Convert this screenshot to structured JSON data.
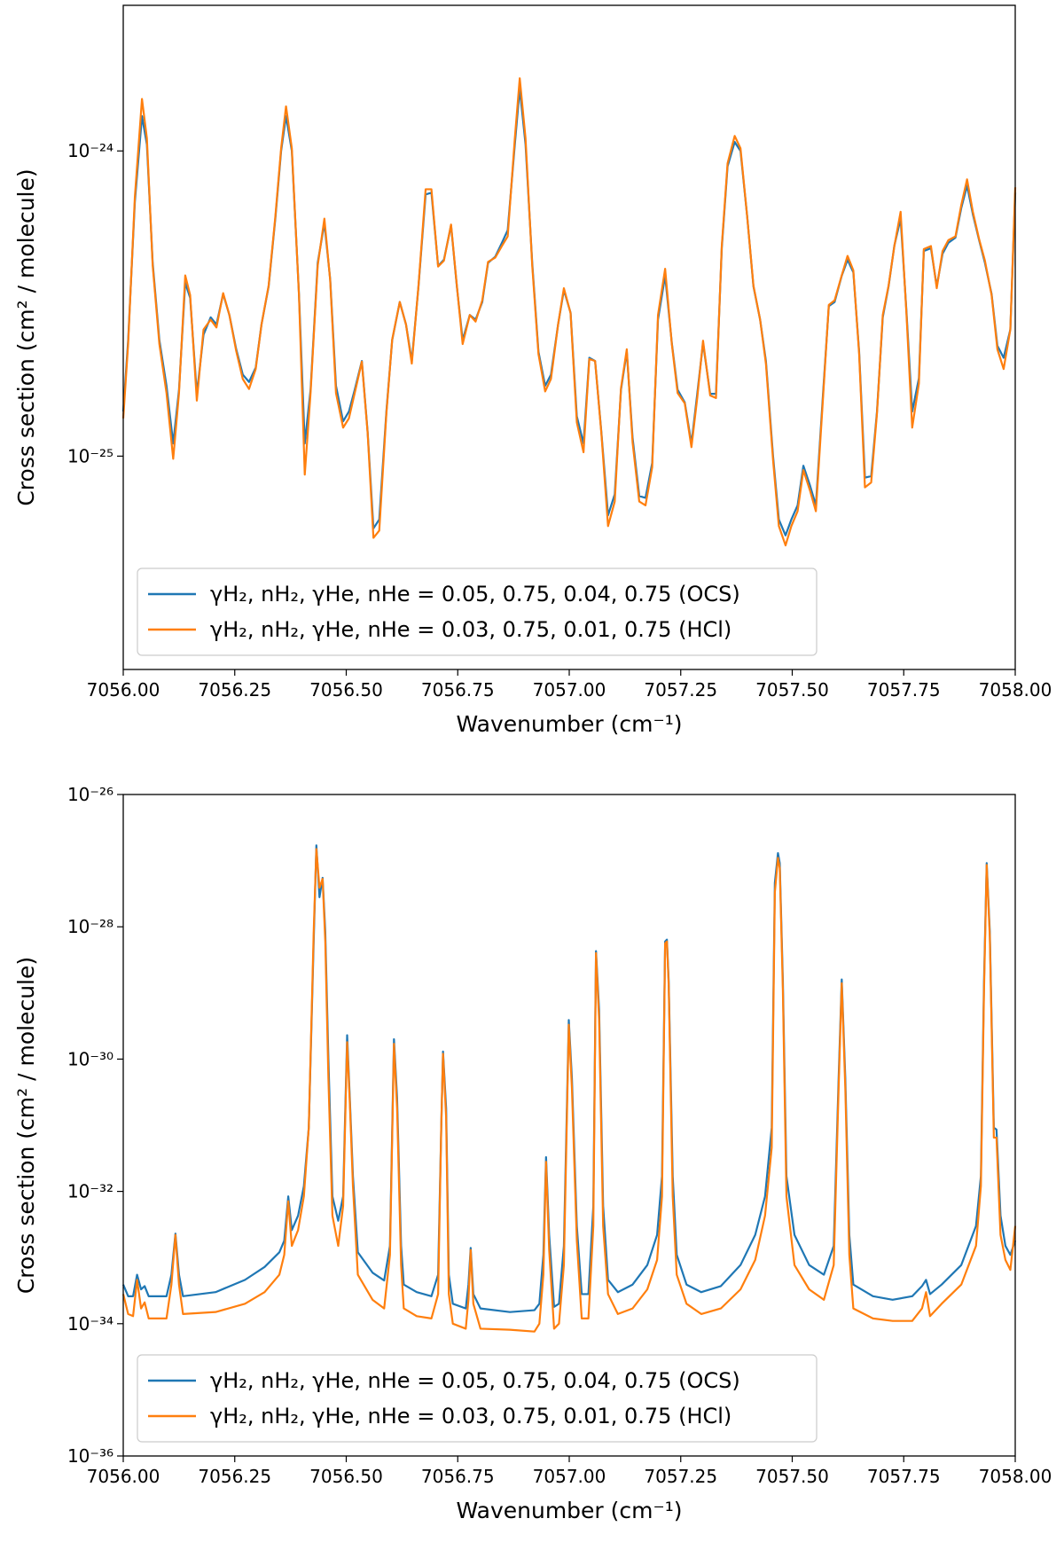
{
  "chart_data": [
    {
      "type": "line",
      "xlabel": "Wavenumber (cm⁻¹)",
      "ylabel": "Cross section (cm² / molecule)",
      "yscale": "log",
      "legend": "lower left",
      "xlim": [
        7056,
        7058
      ],
      "ylim": [
        2e-26,
        3e-24
      ],
      "xticks": [
        {
          "value": 7056,
          "label": "7056.00"
        },
        {
          "value": 7056.25,
          "label": "7056.25"
        },
        {
          "value": 7056.5,
          "label": "7056.50"
        },
        {
          "value": 7056.75,
          "label": "7056.75"
        },
        {
          "value": 7057,
          "label": "7057.00"
        },
        {
          "value": 7057.25,
          "label": "7057.25"
        },
        {
          "value": 7057.5,
          "label": "7057.50"
        },
        {
          "value": 7057.75,
          "label": "7057.75"
        },
        {
          "value": 7058,
          "label": "7058.00"
        }
      ],
      "yticks": [
        {
          "value": 1e-25,
          "label": "10⁻²⁵"
        },
        {
          "value": 1e-24,
          "label": "10⁻²⁴"
        }
      ],
      "x": [
        7056.0,
        7056.011,
        7056.026,
        7056.042,
        7056.053,
        7056.066,
        7056.081,
        7056.097,
        7056.112,
        7056.125,
        7056.139,
        7056.15,
        7056.165,
        7056.18,
        7056.196,
        7056.209,
        7056.224,
        7056.238,
        7056.253,
        7056.268,
        7056.282,
        7056.297,
        7056.31,
        7056.326,
        7056.341,
        7056.354,
        7056.365,
        7056.378,
        7056.394,
        7056.407,
        7056.42,
        7056.436,
        7056.451,
        7056.464,
        7056.477,
        7056.493,
        7056.506,
        7056.519,
        7056.535,
        7056.548,
        7056.561,
        7056.574,
        7056.59,
        7056.603,
        7056.62,
        7056.634,
        7056.647,
        7056.662,
        7056.678,
        7056.691,
        7056.706,
        7056.719,
        7056.735,
        7056.748,
        7056.761,
        7056.777,
        7056.79,
        7056.805,
        7056.818,
        7056.834,
        7056.849,
        7056.862,
        7056.878,
        7056.889,
        7056.902,
        7056.917,
        7056.931,
        7056.946,
        7056.959,
        7056.975,
        7056.988,
        7057.003,
        7057.017,
        7057.032,
        7057.045,
        7057.058,
        7057.072,
        7057.087,
        7057.102,
        7057.116,
        7057.129,
        7057.142,
        7057.157,
        7057.171,
        7057.186,
        7057.199,
        7057.215,
        7057.23,
        7057.243,
        7057.259,
        7057.274,
        7057.287,
        7057.3,
        7057.316,
        7057.329,
        7057.342,
        7057.355,
        7057.371,
        7057.384,
        7057.399,
        7057.413,
        7057.428,
        7057.441,
        7057.457,
        7057.47,
        7057.485,
        7057.498,
        7057.512,
        7057.525,
        7057.54,
        7057.553,
        7057.569,
        7057.582,
        7057.595,
        7057.611,
        7057.624,
        7057.637,
        7057.65,
        7057.663,
        7057.677,
        7057.69,
        7057.703,
        7057.716,
        7057.729,
        7057.743,
        7057.756,
        7057.769,
        7057.784,
        7057.795,
        7057.811,
        7057.824,
        7057.837,
        7057.85,
        7057.866,
        7057.879,
        7057.892,
        7057.905,
        7057.919,
        7057.932,
        7057.947,
        7057.96,
        7057.974,
        7057.989,
        7058.0
      ],
      "series": [
        {
          "name": "γH₂, nH₂, γHe, nHe = 0.05, 0.75, 0.04, 0.75 (OCS)",
          "color": "#1f77b4",
          "values": [
            1.4e-25,
            2.4e-25,
            6.8e-25,
            1.3e-24,
            1.05e-24,
            4.3e-25,
            2.4e-25,
            1.7e-25,
            1.1e-25,
            1.65e-25,
            3.7e-25,
            3.3e-25,
            1.6e-25,
            2.5e-25,
            2.85e-25,
            2.7e-25,
            3.4e-25,
            2.9e-25,
            2.25e-25,
            1.85e-25,
            1.75e-25,
            1.95e-25,
            2.7e-25,
            3.6e-25,
            6e-25,
            1e-24,
            1.3e-24,
            1e-24,
            3.4e-25,
            1.1e-25,
            1.65e-25,
            4.3e-25,
            5.8e-25,
            3.8e-25,
            1.7e-25,
            1.3e-25,
            1.4e-25,
            1.65e-25,
            2.05e-25,
            1.2e-25,
            5.8e-26,
            6.2e-26,
            1.4e-25,
            2.4e-25,
            3.2e-25,
            2.7e-25,
            2.05e-25,
            3.6e-25,
            7.2e-25,
            7.3e-25,
            4.2e-25,
            4.4e-25,
            5.7e-25,
            3.6e-25,
            2.4e-25,
            2.9e-25,
            2.8e-25,
            3.2e-25,
            4.3e-25,
            4.5e-25,
            5e-25,
            5.5e-25,
            1.05e-24,
            1.6e-24,
            1.05e-24,
            4.3e-25,
            2.2e-25,
            1.7e-25,
            1.85e-25,
            2.7e-25,
            3.5e-25,
            2.95e-25,
            1.35e-25,
            1.1e-25,
            2.1e-25,
            2.05e-25,
            1.2e-25,
            6.4e-26,
            7.5e-26,
            1.65e-25,
            2.2e-25,
            1.15e-25,
            7.4e-26,
            7.3e-26,
            9.5e-26,
            2.8e-25,
            3.9e-25,
            2.35e-25,
            1.65e-25,
            1.5e-25,
            1.1e-25,
            1.6e-25,
            2.35e-25,
            1.6e-25,
            1.6e-25,
            4.8e-25,
            8.9e-25,
            1.07e-24,
            1e-24,
            6.1e-25,
            3.6e-25,
            2.8e-25,
            2.05e-25,
            1e-25,
            6.2e-26,
            5.5e-26,
            6.2e-26,
            6.9e-26,
            9.3e-26,
            8e-26,
            6.9e-26,
            1.6e-25,
            3.1e-25,
            3.2e-25,
            3.9e-25,
            4.4e-25,
            4e-25,
            2.2e-25,
            8.5e-26,
            8.6e-26,
            1.4e-25,
            2.85e-25,
            3.6e-25,
            4.9e-25,
            6e-25,
            3e-25,
            1.4e-25,
            1.8e-25,
            4.7e-25,
            4.8e-25,
            3.6e-25,
            4.6e-25,
            5e-25,
            5.2e-25,
            6.5e-25,
            7.7e-25,
            6.2e-25,
            5.1e-25,
            4.3e-25,
            3.4e-25,
            2.3e-25,
            2.1e-25,
            2.6e-25,
            7.3e-25
          ]
        },
        {
          "name": "γH₂, nH₂, γHe, nHe = 0.03, 0.75, 0.01, 0.75 (HCl)",
          "color": "#ff7f0e",
          "values": [
            1.33e-25,
            2.33e-25,
            7.06e-25,
            1.48e-24,
            1.1e-24,
            4.21e-25,
            2.33e-25,
            1.61e-25,
            9.8e-26,
            1.61e-25,
            3.91e-25,
            3.37e-25,
            1.52e-25,
            2.6e-25,
            2.8e-25,
            2.64e-25,
            3.42e-25,
            2.9e-25,
            2.22e-25,
            1.79e-25,
            1.66e-25,
            1.93e-25,
            2.7e-25,
            3.62e-25,
            6.09e-25,
            1.02e-24,
            1.4e-24,
            1.02e-24,
            3.37e-25,
            8.7e-26,
            1.61e-25,
            4.21e-25,
            6e-25,
            3.77e-25,
            1.61e-25,
            1.24e-25,
            1.33e-25,
            1.61e-25,
            2.04e-25,
            1.19e-25,
            5.4e-26,
            5.7e-26,
            1.38e-25,
            2.41e-25,
            3.2e-25,
            2.7e-25,
            2.01e-25,
            3.62e-25,
            7.49e-25,
            7.49e-25,
            4.18e-25,
            4.37e-25,
            5.74e-25,
            3.62e-25,
            2.33e-25,
            2.9e-25,
            2.76e-25,
            3.24e-25,
            4.33e-25,
            4.47e-25,
            4.88e-25,
            5.25e-25,
            1.1e-24,
            1.73e-24,
            1.1e-24,
            4.21e-25,
            2.16e-25,
            1.63e-25,
            1.79e-25,
            2.7e-25,
            3.55e-25,
            2.94e-25,
            1.29e-25,
            1.03e-25,
            2.08e-25,
            2.05e-25,
            1.19e-25,
            5.9e-26,
            7.1e-26,
            1.67e-25,
            2.24e-25,
            1.11e-25,
            7.1e-26,
            6.9e-26,
            9.2e-26,
            2.9e-25,
            4.11e-25,
            2.33e-25,
            1.61e-25,
            1.49e-25,
            1.07e-25,
            1.55e-25,
            2.39e-25,
            1.58e-25,
            1.55e-25,
            4.88e-25,
            9.1e-25,
            1.12e-24,
            1.02e-24,
            6.09e-25,
            3.62e-25,
            2.8e-25,
            2.01e-25,
            9.7e-26,
            5.9e-26,
            5.1e-26,
            5.9e-26,
            6.6e-26,
            9e-26,
            7.7e-26,
            6.6e-26,
            1.55e-25,
            3.13e-25,
            3.24e-25,
            3.91e-25,
            4.53e-25,
            4.06e-25,
            2.16e-25,
            7.9e-26,
            8.2e-26,
            1.38e-25,
            2.9e-25,
            3.62e-25,
            4.88e-25,
            6.32e-25,
            2.94e-25,
            1.24e-25,
            1.73e-25,
            4.77e-25,
            4.88e-25,
            3.55e-25,
            4.7e-25,
            5.1e-25,
            5.25e-25,
            6.65e-25,
            8.07e-25,
            6.32e-25,
            5.14e-25,
            4.37e-25,
            3.37e-25,
            2.24e-25,
            1.93e-25,
            2.6e-25,
            7.6e-25
          ]
        }
      ]
    },
    {
      "type": "line",
      "xlabel": "Wavenumber (cm⁻¹)",
      "ylabel": "Cross section (cm² / molecule)",
      "yscale": "log",
      "legend": "lower left",
      "xlim": [
        7056,
        7058
      ],
      "ylim": [
        1e-36,
        1e-26
      ],
      "xticks": [
        {
          "value": 7056,
          "label": "7056.00"
        },
        {
          "value": 7056.25,
          "label": "7056.25"
        },
        {
          "value": 7056.5,
          "label": "7056.50"
        },
        {
          "value": 7056.75,
          "label": "7056.75"
        },
        {
          "value": 7057,
          "label": "7057.00"
        },
        {
          "value": 7057.25,
          "label": "7057.25"
        },
        {
          "value": 7057.5,
          "label": "7057.50"
        },
        {
          "value": 7057.75,
          "label": "7057.75"
        },
        {
          "value": 7058,
          "label": "7058.00"
        }
      ],
      "yticks": [
        {
          "value": 1e-36,
          "label": "10⁻³⁶"
        },
        {
          "value": 1e-34,
          "label": "10⁻³⁴"
        },
        {
          "value": 1e-32,
          "label": "10⁻³²"
        },
        {
          "value": 1e-30,
          "label": "10⁻³⁰"
        },
        {
          "value": 1e-28,
          "label": "10⁻²⁸"
        },
        {
          "value": 1e-26,
          "label": "10⁻²⁶"
        }
      ],
      "x": [
        7056.0,
        7056.011,
        7056.022,
        7056.031,
        7056.04,
        7056.048,
        7056.057,
        7056.097,
        7056.108,
        7056.117,
        7056.125,
        7056.134,
        7056.207,
        7056.273,
        7056.317,
        7056.35,
        7056.361,
        7056.37,
        7056.378,
        7056.392,
        7056.405,
        7056.416,
        7056.427,
        7056.433,
        7056.44,
        7056.447,
        7056.453,
        7056.46,
        7056.469,
        7056.482,
        7056.493,
        7056.502,
        7056.508,
        7056.515,
        7056.526,
        7056.559,
        7056.585,
        7056.598,
        7056.607,
        7056.614,
        7056.623,
        7056.629,
        7056.658,
        7056.691,
        7056.706,
        7056.713,
        7056.717,
        7056.724,
        7056.73,
        7056.739,
        7056.768,
        7056.774,
        7056.779,
        7056.785,
        7056.801,
        7056.867,
        7056.922,
        7056.933,
        7056.942,
        7056.948,
        7056.955,
        7056.966,
        7056.977,
        7056.988,
        7056.999,
        7057.006,
        7057.017,
        7057.028,
        7057.043,
        7057.054,
        7057.06,
        7057.067,
        7057.076,
        7057.087,
        7057.109,
        7057.142,
        7057.175,
        7057.197,
        7057.208,
        7057.215,
        7057.219,
        7057.223,
        7057.232,
        7057.241,
        7057.263,
        7057.296,
        7057.34,
        7057.384,
        7057.417,
        7057.439,
        7057.454,
        7057.461,
        7057.468,
        7057.472,
        7057.479,
        7057.487,
        7057.505,
        7057.538,
        7057.571,
        7057.593,
        7057.604,
        7057.611,
        7057.619,
        7057.628,
        7057.637,
        7057.681,
        7057.725,
        7057.769,
        7057.791,
        7057.8,
        7057.809,
        7057.835,
        7057.879,
        7057.912,
        7057.923,
        7057.93,
        7057.936,
        7057.943,
        7057.952,
        7057.958,
        7057.967,
        7057.978,
        7057.989,
        7058.0
      ],
      "series": [
        {
          "name": "γH₂, nH₂, γHe, nHe = 0.05, 0.75, 0.04, 0.75 (OCS)",
          "color": "#1f77b4",
          "values": [
            3.9e-34,
            2.6e-34,
            2.6e-34,
            5.5e-34,
            3.3e-34,
            3.7e-34,
            2.6e-34,
            2.6e-34,
            5.5e-34,
            2.3e-33,
            5.5e-34,
            2.6e-34,
            3e-34,
            4.6e-34,
            7.2e-34,
            1.2e-33,
            1.8e-33,
            8.4e-33,
            2.6e-33,
            4.3e-33,
            1.2e-32,
            9.2e-32,
            6e-29,
            1.7e-27,
            2.8e-28,
            5.5e-28,
            8.4e-29,
            1e-30,
            8.4e-33,
            3.6e-33,
            8.4e-33,
            2.3e-30,
            2.6e-31,
            1.7e-32,
            1.2e-33,
            5.9e-34,
            4.5e-34,
            1.5e-33,
            2e-30,
            2.6e-31,
            1.5e-33,
            3.9e-34,
            3e-34,
            2.6e-34,
            5.5e-34,
            9.2e-32,
            1.3e-30,
            1.8e-31,
            5.5e-34,
            2e-34,
            1.7e-34,
            3.9e-34,
            1.4e-33,
            2.8e-34,
            1.7e-34,
            1.5e-34,
            1.6e-34,
            2e-34,
            1.1e-33,
            3.3e-32,
            2.2e-33,
            1.8e-34,
            2e-34,
            1.5e-33,
            3.9e-30,
            5.1e-31,
            3e-33,
            2.8e-34,
            2.8e-34,
            6e-33,
            4.3e-29,
            5.5e-30,
            6e-33,
            4.6e-34,
            3e-34,
            3.9e-34,
            7.7e-34,
            2.2e-33,
            1.7e-32,
            6e-29,
            6.4e-29,
            1.5e-29,
            1.7e-32,
            1.1e-33,
            3.9e-34,
            3e-34,
            3.7e-34,
            7.7e-34,
            2.2e-33,
            8.4e-33,
            9.2e-32,
            4.6e-28,
            1.3e-27,
            9.2e-28,
            1.5e-29,
            1.7e-32,
            2.2e-33,
            7.7e-34,
            5.5e-34,
            1.5e-33,
            5.1e-31,
            1.6e-29,
            5.1e-31,
            2.2e-33,
            3.9e-34,
            2.6e-34,
            2.3e-34,
            2.6e-34,
            3.7e-34,
            4.6e-34,
            2.8e-34,
            3.9e-34,
            7.7e-34,
            3e-33,
            1.7e-32,
            1.5e-29,
            9.2e-28,
            8.4e-29,
            9.2e-32,
            8.6e-32,
            4.3e-33,
            1.5e-33,
            1.1e-33,
            1.8e-33
          ]
        },
        {
          "name": "γH₂, nH₂, γHe, nHe = 0.03, 0.75, 0.01, 0.75 (HCl)",
          "color": "#ff7f0e",
          "values": [
            2.8e-34,
            1.4e-34,
            1.3e-34,
            4.6e-34,
            1.7e-34,
            2.1e-34,
            1.2e-34,
            1.2e-34,
            3.9e-34,
            2.2e-33,
            3.9e-34,
            1.4e-34,
            1.5e-34,
            2e-34,
            3e-34,
            5.5e-34,
            1.1e-33,
            7.1e-33,
            1.5e-33,
            2.6e-33,
            8.4e-33,
            9.2e-32,
            8.4e-29,
            1.5e-27,
            3.9e-28,
            5.3e-28,
            6e-29,
            5.1e-31,
            4.3e-33,
            1.5e-33,
            6e-33,
            1.8e-30,
            2.2e-31,
            1.2e-32,
            5.5e-34,
            2.3e-34,
            1.7e-34,
            1.1e-33,
            1.7e-30,
            1.8e-31,
            7.7e-34,
            1.7e-34,
            1.3e-34,
            1.2e-34,
            2.8e-34,
            9.2e-32,
            1.2e-30,
            1.3e-31,
            2.8e-34,
            1e-34,
            8.4e-35,
            2.3e-34,
            1.3e-33,
            2e-34,
            8.4e-35,
            8.1e-35,
            7.6e-35,
            1e-34,
            5.5e-34,
            2.8e-32,
            1.3e-33,
            8.4e-35,
            1e-34,
            7.7e-34,
            3.3e-30,
            3.6e-31,
            1.8e-33,
            1.2e-34,
            1.2e-34,
            3e-33,
            4e-29,
            3.9e-30,
            3e-33,
            2.8e-34,
            1.4e-34,
            1.7e-34,
            3.3e-34,
            9.2e-34,
            8.4e-33,
            5.6e-29,
            6e-29,
            1.3e-29,
            8.4e-33,
            5.5e-34,
            2e-34,
            1.4e-34,
            1.7e-34,
            3.3e-34,
            9.2e-34,
            4.3e-33,
            4.6e-32,
            3.3e-28,
            1.1e-27,
            7.7e-28,
            1.1e-29,
            8.4e-33,
            7.7e-34,
            3.3e-34,
            2.3e-34,
            7.7e-34,
            3.6e-31,
            1.4e-29,
            3.6e-31,
            1.1e-33,
            1.7e-34,
            1.2e-34,
            1.1e-34,
            1.1e-34,
            1.7e-34,
            3e-34,
            1.3e-34,
            2e-34,
            3.9e-34,
            1.5e-33,
            1.2e-32,
            1.1e-29,
            8.6e-28,
            7.1e-29,
            6.5e-32,
            6.5e-32,
            2.2e-33,
            9.2e-34,
            6.5e-34,
            3e-33
          ]
        }
      ]
    }
  ]
}
